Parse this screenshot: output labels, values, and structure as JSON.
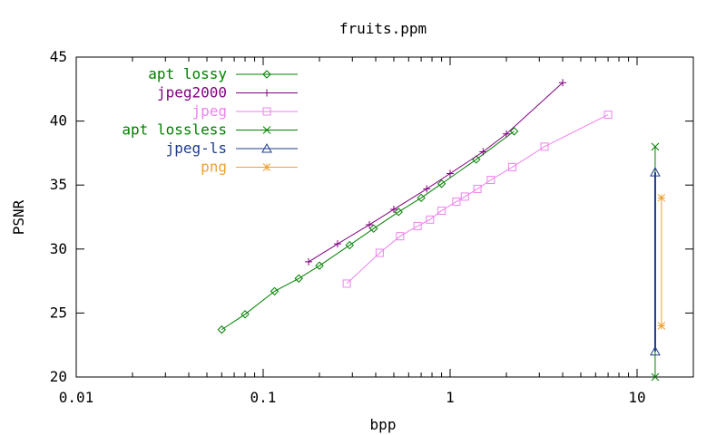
{
  "chart_data": {
    "type": "line",
    "title": "fruits.ppm",
    "xlabel": "bpp",
    "ylabel": "PSNR",
    "xscale": "log",
    "xlim": [
      0.01,
      20
    ],
    "ylim": [
      20,
      45
    ],
    "xticks": [
      0.01,
      0.1,
      1,
      10
    ],
    "xtick_labels": [
      "0.01",
      "0.1",
      "1",
      "10"
    ],
    "yticks": [
      20,
      25,
      30,
      35,
      40,
      45
    ],
    "ytick_labels": [
      "20",
      "25",
      "30",
      "35",
      "40",
      "45"
    ],
    "grid": false,
    "legend_position": "top-left",
    "series": [
      {
        "name": "apt lossy",
        "color": "#008000",
        "marker": "diamond",
        "x": [
          0.06,
          0.08,
          0.115,
          0.155,
          0.2,
          0.29,
          0.39,
          0.53,
          0.7,
          0.9,
          1.38,
          2.2
        ],
        "y": [
          23.7,
          24.9,
          26.7,
          27.7,
          28.7,
          30.3,
          31.6,
          32.9,
          34.0,
          35.1,
          37.0,
          39.2
        ]
      },
      {
        "name": "jpeg2000",
        "color": "#800080",
        "marker": "plus",
        "x": [
          0.175,
          0.25,
          0.37,
          0.5,
          0.75,
          1.0,
          1.5,
          2.0,
          4.0
        ],
        "y": [
          29.0,
          30.4,
          31.9,
          33.1,
          34.7,
          35.9,
          37.6,
          39.0,
          43.0
        ]
      },
      {
        "name": "jpeg",
        "color": "#ee82ee",
        "marker": "square",
        "x": [
          0.28,
          0.42,
          0.54,
          0.67,
          0.78,
          0.9,
          1.08,
          1.2,
          1.4,
          1.65,
          2.15,
          3.2,
          7.0
        ],
        "y": [
          27.3,
          29.7,
          31.0,
          31.8,
          32.3,
          33.0,
          33.7,
          34.1,
          34.7,
          35.4,
          36.4,
          38.0,
          40.5
        ]
      },
      {
        "name": "apt lossless",
        "color": "#008000",
        "marker": "x",
        "x": [
          12.5,
          12.5
        ],
        "y": [
          20,
          38
        ]
      },
      {
        "name": "jpeg-ls",
        "color": "#1e3c8c",
        "marker": "triangle",
        "x": [
          12.5,
          12.5
        ],
        "y": [
          22,
          36
        ]
      },
      {
        "name": "png",
        "color": "#f0a030",
        "marker": "asterisk",
        "x": [
          13.5,
          13.5
        ],
        "y": [
          24,
          34
        ]
      }
    ]
  }
}
